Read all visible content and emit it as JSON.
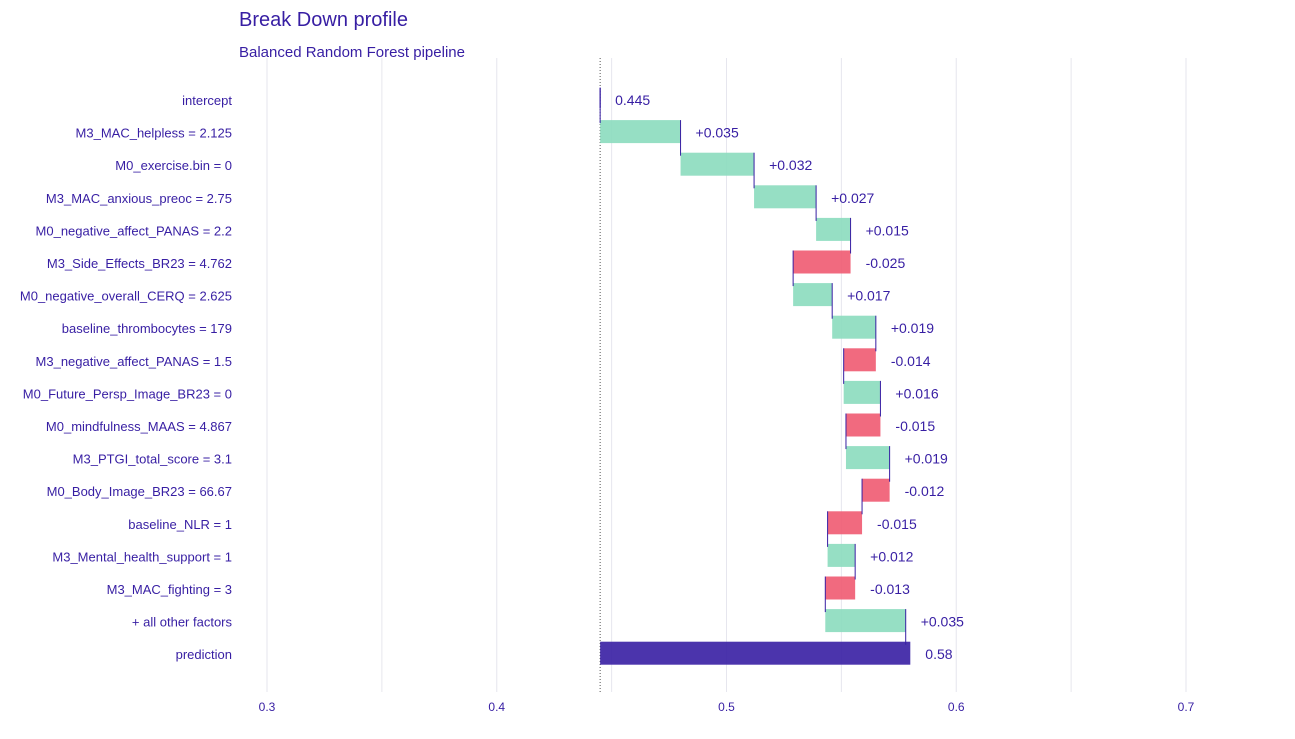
{
  "chart_data": {
    "type": "bar",
    "title": "Break Down profile",
    "subtitle": "Balanced Random Forest pipeline",
    "xlabel": "",
    "ylabel": "",
    "xlim": [
      0.3,
      0.7
    ],
    "x_ticks": [
      "0.3",
      "0.4",
      "0.5",
      "0.6",
      "0.7"
    ],
    "grid": true,
    "baseline": 0.445,
    "colors": {
      "positive": "#8bdcbe",
      "negative": "#f05a71",
      "prediction": "#371ea3",
      "connector": "#371ea3"
    },
    "rows": [
      {
        "variable": "intercept",
        "start": 0.445,
        "end": 0.445,
        "kind": "intercept",
        "label": "0.445"
      },
      {
        "variable": "M3_MAC_helpless = 2.125",
        "start": 0.445,
        "end": 0.48,
        "kind": "positive",
        "label": "+0.035"
      },
      {
        "variable": "M0_exercise.bin = 0",
        "start": 0.48,
        "end": 0.512,
        "kind": "positive",
        "label": "+0.032"
      },
      {
        "variable": "M3_MAC_anxious_preoc = 2.75",
        "start": 0.512,
        "end": 0.539,
        "kind": "positive",
        "label": "+0.027"
      },
      {
        "variable": "M0_negative_affect_PANAS = 2.2",
        "start": 0.539,
        "end": 0.554,
        "kind": "positive",
        "label": "+0.015"
      },
      {
        "variable": "M3_Side_Effects_BR23 = 4.762",
        "start": 0.554,
        "end": 0.529,
        "kind": "negative",
        "label": "-0.025"
      },
      {
        "variable": "M0_negative_overall_CERQ = 2.625",
        "start": 0.529,
        "end": 0.546,
        "kind": "positive",
        "label": "+0.017"
      },
      {
        "variable": "baseline_thrombocytes = 179",
        "start": 0.546,
        "end": 0.565,
        "kind": "positive",
        "label": "+0.019"
      },
      {
        "variable": "M3_negative_affect_PANAS = 1.5",
        "start": 0.565,
        "end": 0.551,
        "kind": "negative",
        "label": "-0.014"
      },
      {
        "variable": "M0_Future_Persp_Image_BR23 = 0",
        "start": 0.551,
        "end": 0.567,
        "kind": "positive",
        "label": "+0.016"
      },
      {
        "variable": "M0_mindfulness_MAAS = 4.867",
        "start": 0.567,
        "end": 0.552,
        "kind": "negative",
        "label": "-0.015"
      },
      {
        "variable": "M3_PTGI_total_score = 3.1",
        "start": 0.552,
        "end": 0.571,
        "kind": "positive",
        "label": "+0.019"
      },
      {
        "variable": "M0_Body_Image_BR23 = 66.67",
        "start": 0.571,
        "end": 0.559,
        "kind": "negative",
        "label": "-0.012"
      },
      {
        "variable": "baseline_NLR = 1",
        "start": 0.559,
        "end": 0.544,
        "kind": "negative",
        "label": "-0.015"
      },
      {
        "variable": "M3_Mental_health_support = 1",
        "start": 0.544,
        "end": 0.556,
        "kind": "positive",
        "label": "+0.012"
      },
      {
        "variable": "M3_MAC_fighting = 3",
        "start": 0.556,
        "end": 0.543,
        "kind": "negative",
        "label": "-0.013"
      },
      {
        "variable": "+ all other factors",
        "start": 0.543,
        "end": 0.578,
        "kind": "positive",
        "label": "+0.035"
      },
      {
        "variable": "prediction",
        "start": 0.445,
        "end": 0.58,
        "kind": "prediction",
        "label": "0.58"
      }
    ]
  }
}
